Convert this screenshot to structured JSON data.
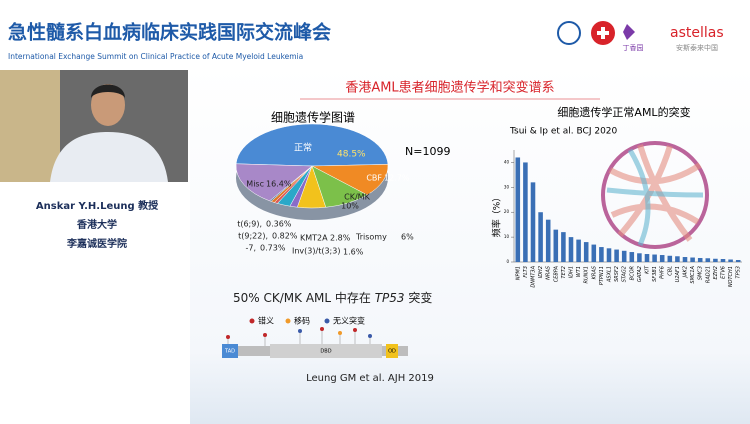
{
  "header": {
    "title": "急性髓系白血病临床实践国际交流峰会",
    "subtitle": "International Exchange Summit on Clinical Practice of Acute Myeloid Leukemia",
    "logos": [
      "丁香园",
      "astellas",
      "安斯泰来中国"
    ]
  },
  "speaker": {
    "name": "Anskar Y.H.Leung 教授",
    "university": "香港大学",
    "school": "李嘉诚医学院"
  },
  "slide": {
    "title": "香港AML患者细胞遗传学和突变谱系",
    "tp53_title": [
      "50% CK/MK AML 中存在",
      "TP53",
      "突变"
    ],
    "tp53_legend": [
      "错义",
      "移码",
      "无义突变"
    ],
    "tp53_domains": [
      "TAD",
      "DBD",
      "OD"
    ],
    "citation": "Leung GM et al. AJH 2019"
  },
  "chart_data": [
    {
      "type": "pie",
      "title": "细胞遗传学图谱",
      "note": "N=1099",
      "categories": [
        "正常",
        "CBF",
        "CK/MK",
        "Trisomy",
        "Inv(3)/t(3;3)",
        "KMT2A",
        "-7,",
        "t(9;22),",
        "t(6;9),",
        "Misc"
      ],
      "values": [
        48.5,
        12.7,
        10,
        6,
        1.6,
        2.8,
        0.73,
        0.82,
        0.36,
        16.4
      ],
      "value_labels": [
        "48.5%",
        "12.7%",
        "10%",
        "6%",
        "1.6%",
        "2.8%",
        "0.73%",
        "0.82%",
        "0.36%",
        "16.4%"
      ],
      "colors": [
        "#4a8ad4",
        "#f08a24",
        "#7cc04a",
        "#f2c21c",
        "#8a6cc8",
        "#2aa8c8",
        "#d85a5a",
        "#e07a2a",
        "#4a7a9a",
        "#a888c8"
      ]
    },
    {
      "type": "bar",
      "title": "细胞遗传学正常AML的突变",
      "subtitle": "Tsui & Ip et al. BCJ 2020",
      "y_label": "频率（%）",
      "categories": [
        "NPM1",
        "FLT3",
        "DNMT3A",
        "IDH2",
        "NRAS",
        "CEBPA",
        "TET2",
        "IDH1",
        "WT1",
        "RUNX1",
        "KRAS",
        "PTPN11",
        "ASXL1",
        "SRSF2",
        "STAG2",
        "BCOR",
        "GATA2",
        "KIT",
        "SF3B1",
        "PHF6",
        "CBL",
        "U2AF1",
        "JAK2",
        "SMC1A",
        "SMC3",
        "RAD21",
        "EZH2",
        "ETV6",
        "NOTCH1",
        "TP53"
      ],
      "values": [
        42,
        40,
        32,
        20,
        17,
        13,
        12,
        10,
        9,
        8,
        7,
        6,
        5.5,
        5,
        4.5,
        4,
        3.5,
        3.2,
        3,
        2.8,
        2.5,
        2.3,
        2,
        1.8,
        1.6,
        1.5,
        1.3,
        1.2,
        1,
        0.8
      ],
      "color": "#3a6fb5",
      "ylim": [
        0,
        45
      ],
      "yticks": [
        0,
        10,
        20,
        30,
        40
      ]
    }
  ]
}
